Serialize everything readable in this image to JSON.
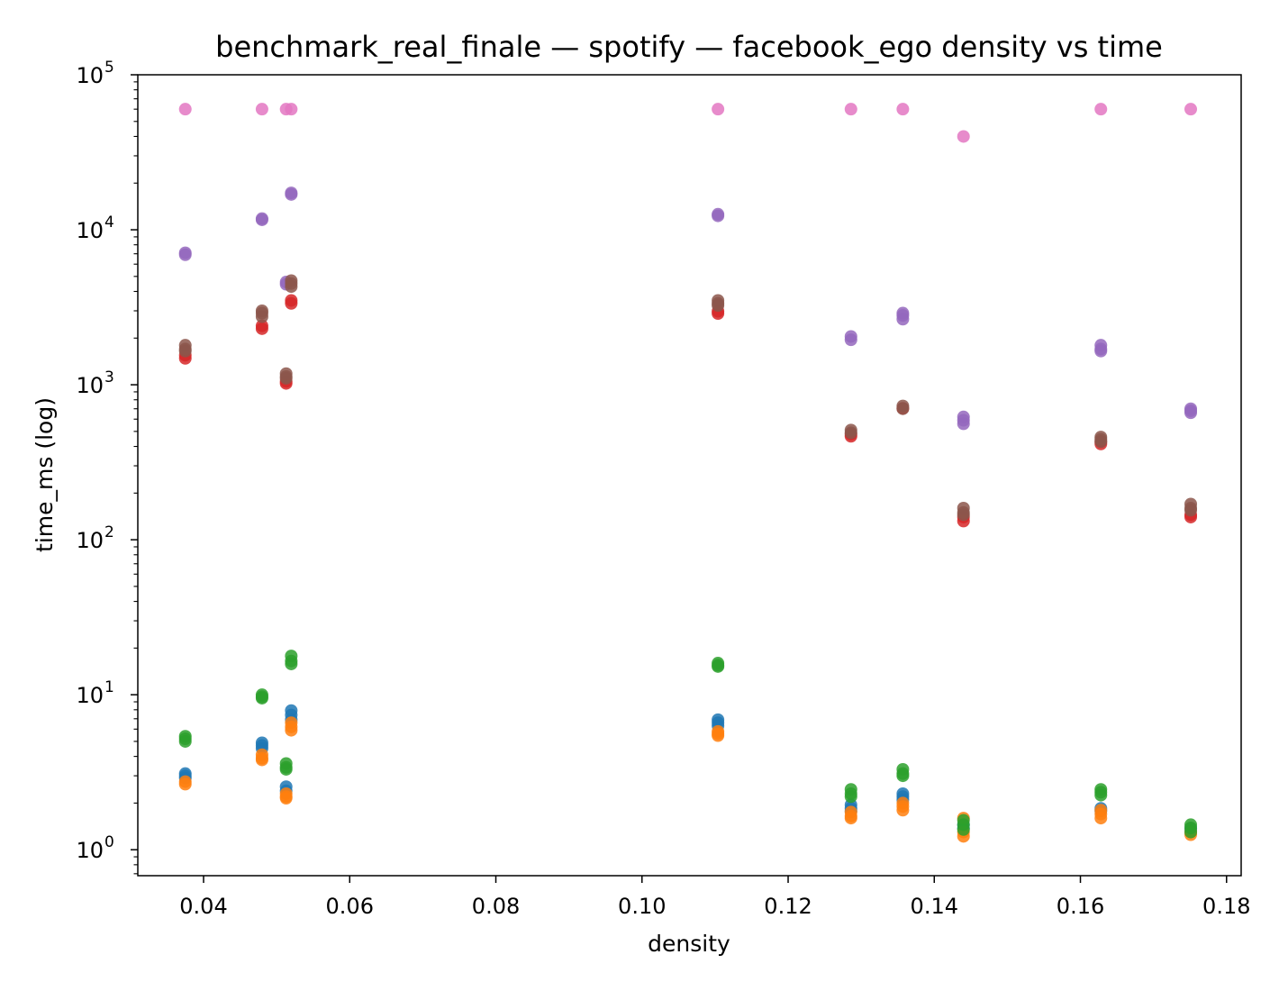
{
  "chart_data": {
    "type": "scatter",
    "title": "benchmark_real_finale — spotify — facebook_ego density vs time",
    "xlabel": "density",
    "ylabel": "time_ms (log)",
    "xlim": [
      0.031,
      0.182
    ],
    "ylim": [
      0.68,
      100000
    ],
    "yscale": "log",
    "grid": false,
    "legend": "none",
    "x_ticks": [
      {
        "value": 0.04,
        "label": "0.04"
      },
      {
        "value": 0.06,
        "label": "0.06"
      },
      {
        "value": 0.08,
        "label": "0.08"
      },
      {
        "value": 0.1,
        "label": "0.10"
      },
      {
        "value": 0.12,
        "label": "0.12"
      },
      {
        "value": 0.14,
        "label": "0.14"
      },
      {
        "value": 0.16,
        "label": "0.16"
      },
      {
        "value": 0.18,
        "label": "0.18"
      }
    ],
    "y_ticks": [
      {
        "value": 1,
        "base": "10",
        "exp": "0"
      },
      {
        "value": 10,
        "base": "10",
        "exp": "1"
      },
      {
        "value": 100,
        "base": "10",
        "exp": "2"
      },
      {
        "value": 1000,
        "base": "10",
        "exp": "3"
      },
      {
        "value": 10000,
        "base": "10",
        "exp": "4"
      },
      {
        "value": 100000,
        "base": "10",
        "exp": "5"
      }
    ],
    "series": [
      {
        "color": "#1f77b4",
        "points": [
          [
            0.0375,
            3.1
          ],
          [
            0.0375,
            3.0
          ],
          [
            0.0375,
            2.9
          ],
          [
            0.048,
            4.9
          ],
          [
            0.048,
            4.7
          ],
          [
            0.048,
            4.5
          ],
          [
            0.0513,
            2.55
          ],
          [
            0.0513,
            2.4
          ],
          [
            0.052,
            7.9
          ],
          [
            0.052,
            7.4
          ],
          [
            0.052,
            6.9
          ],
          [
            0.1104,
            6.9
          ],
          [
            0.1104,
            6.6
          ],
          [
            0.1104,
            6.3
          ],
          [
            0.1286,
            1.95
          ],
          [
            0.1286,
            1.85
          ],
          [
            0.1286,
            1.78
          ],
          [
            0.1357,
            2.3
          ],
          [
            0.1357,
            2.2
          ],
          [
            0.1357,
            2.1
          ],
          [
            0.144,
            1.45
          ],
          [
            0.144,
            1.38
          ],
          [
            0.1628,
            1.85
          ],
          [
            0.1628,
            1.78
          ],
          [
            0.1751,
            1.38
          ],
          [
            0.1751,
            1.32
          ]
        ]
      },
      {
        "color": "#ff7f0e",
        "points": [
          [
            0.0375,
            2.75
          ],
          [
            0.0375,
            2.65
          ],
          [
            0.048,
            4.1
          ],
          [
            0.048,
            3.9
          ],
          [
            0.048,
            3.8
          ],
          [
            0.0513,
            2.3
          ],
          [
            0.0513,
            2.2
          ],
          [
            0.0513,
            2.15
          ],
          [
            0.052,
            6.6
          ],
          [
            0.052,
            6.2
          ],
          [
            0.052,
            5.9
          ],
          [
            0.1104,
            5.8
          ],
          [
            0.1104,
            5.6
          ],
          [
            0.1104,
            5.45
          ],
          [
            0.1286,
            1.75
          ],
          [
            0.1286,
            1.65
          ],
          [
            0.1286,
            1.6
          ],
          [
            0.1357,
            2.0
          ],
          [
            0.1357,
            1.9
          ],
          [
            0.1357,
            1.8
          ],
          [
            0.144,
            1.6
          ],
          [
            0.144,
            1.3
          ],
          [
            0.144,
            1.22
          ],
          [
            0.1628,
            1.8
          ],
          [
            0.1628,
            1.7
          ],
          [
            0.1628,
            1.6
          ],
          [
            0.1751,
            1.3
          ],
          [
            0.1751,
            1.25
          ]
        ]
      },
      {
        "color": "#2ca02c",
        "points": [
          [
            0.0375,
            5.4
          ],
          [
            0.0375,
            5.2
          ],
          [
            0.0375,
            5.0
          ],
          [
            0.048,
            10.0
          ],
          [
            0.048,
            9.7
          ],
          [
            0.048,
            9.5
          ],
          [
            0.0513,
            3.6
          ],
          [
            0.0513,
            3.4
          ],
          [
            0.0513,
            3.3
          ],
          [
            0.052,
            17.8
          ],
          [
            0.052,
            16.5
          ],
          [
            0.052,
            15.8
          ],
          [
            0.1104,
            16.0
          ],
          [
            0.1104,
            15.5
          ],
          [
            0.1104,
            15.2
          ],
          [
            0.1286,
            2.45
          ],
          [
            0.1286,
            2.3
          ],
          [
            0.1286,
            2.2
          ],
          [
            0.1357,
            3.3
          ],
          [
            0.1357,
            3.1
          ],
          [
            0.1357,
            3.0
          ],
          [
            0.144,
            1.55
          ],
          [
            0.144,
            1.45
          ],
          [
            0.144,
            1.35
          ],
          [
            0.1628,
            2.45
          ],
          [
            0.1628,
            2.35
          ],
          [
            0.1628,
            2.25
          ],
          [
            0.1751,
            1.45
          ],
          [
            0.1751,
            1.38
          ],
          [
            0.1751,
            1.3
          ]
        ]
      },
      {
        "color": "#d62728",
        "points": [
          [
            0.0375,
            1550
          ],
          [
            0.0375,
            1480
          ],
          [
            0.048,
            2400
          ],
          [
            0.048,
            2300
          ],
          [
            0.0513,
            1050
          ],
          [
            0.0513,
            1020
          ],
          [
            0.052,
            3500
          ],
          [
            0.052,
            3350
          ],
          [
            0.1104,
            2980
          ],
          [
            0.1104,
            2880
          ],
          [
            0.1286,
            480
          ],
          [
            0.1286,
            465
          ],
          [
            0.1357,
            705
          ],
          [
            0.144,
            140
          ],
          [
            0.144,
            132
          ],
          [
            0.1628,
            430
          ],
          [
            0.1628,
            415
          ],
          [
            0.1751,
            145
          ],
          [
            0.1751,
            140
          ]
        ]
      },
      {
        "color": "#9467bd",
        "points": [
          [
            0.0375,
            7100
          ],
          [
            0.0375,
            6900
          ],
          [
            0.048,
            11800
          ],
          [
            0.048,
            11600
          ],
          [
            0.0513,
            4600
          ],
          [
            0.0513,
            4450
          ],
          [
            0.052,
            17300
          ],
          [
            0.052,
            16900
          ],
          [
            0.1104,
            12600
          ],
          [
            0.1104,
            12300
          ],
          [
            0.1286,
            2050
          ],
          [
            0.1286,
            1950
          ],
          [
            0.1357,
            2900
          ],
          [
            0.1357,
            2800
          ],
          [
            0.1357,
            2650
          ],
          [
            0.144,
            620
          ],
          [
            0.144,
            590
          ],
          [
            0.144,
            560
          ],
          [
            0.1628,
            1800
          ],
          [
            0.1628,
            1700
          ],
          [
            0.1628,
            1650
          ],
          [
            0.1751,
            700
          ],
          [
            0.1751,
            680
          ],
          [
            0.1751,
            660
          ]
        ]
      },
      {
        "color": "#8c564b",
        "points": [
          [
            0.0375,
            1800
          ],
          [
            0.0375,
            1700
          ],
          [
            0.0375,
            1650
          ],
          [
            0.048,
            3000
          ],
          [
            0.048,
            2900
          ],
          [
            0.048,
            2750
          ],
          [
            0.0513,
            1180
          ],
          [
            0.0513,
            1130
          ],
          [
            0.0513,
            1100
          ],
          [
            0.052,
            4700
          ],
          [
            0.052,
            4500
          ],
          [
            0.052,
            4300
          ],
          [
            0.1104,
            3500
          ],
          [
            0.1104,
            3350
          ],
          [
            0.1104,
            3250
          ],
          [
            0.1286,
            510
          ],
          [
            0.1286,
            490
          ],
          [
            0.1357,
            730
          ],
          [
            0.1357,
            700
          ],
          [
            0.144,
            160
          ],
          [
            0.144,
            150
          ],
          [
            0.144,
            145
          ],
          [
            0.1628,
            460
          ],
          [
            0.1628,
            445
          ],
          [
            0.1628,
            430
          ],
          [
            0.1751,
            170
          ],
          [
            0.1751,
            160
          ],
          [
            0.1751,
            155
          ]
        ]
      },
      {
        "color": "#e377c2",
        "points": [
          [
            0.0375,
            60000
          ],
          [
            0.048,
            60000
          ],
          [
            0.0513,
            60000
          ],
          [
            0.052,
            60000
          ],
          [
            0.1104,
            60000
          ],
          [
            0.1286,
            60000
          ],
          [
            0.1357,
            60000
          ],
          [
            0.144,
            40000
          ],
          [
            0.1628,
            60000
          ],
          [
            0.1751,
            60000
          ]
        ]
      }
    ]
  }
}
